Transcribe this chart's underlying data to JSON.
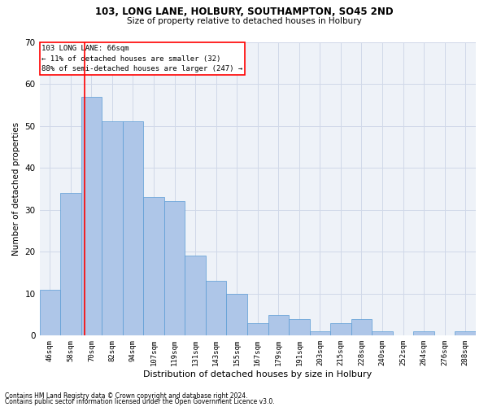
{
  "title1": "103, LONG LANE, HOLBURY, SOUTHAMPTON, SO45 2ND",
  "title2": "Size of property relative to detached houses in Holbury",
  "xlabel": "Distribution of detached houses by size in Holbury",
  "ylabel": "Number of detached properties",
  "categories": [
    "46sqm",
    "58sqm",
    "70sqm",
    "82sqm",
    "94sqm",
    "107sqm",
    "119sqm",
    "131sqm",
    "143sqm",
    "155sqm",
    "167sqm",
    "179sqm",
    "191sqm",
    "203sqm",
    "215sqm",
    "228sqm",
    "240sqm",
    "252sqm",
    "264sqm",
    "276sqm",
    "288sqm"
  ],
  "values": [
    11,
    34,
    57,
    51,
    51,
    33,
    32,
    19,
    13,
    10,
    3,
    5,
    4,
    1,
    3,
    4,
    1,
    0,
    1,
    0,
    1
  ],
  "bar_color": "#aec6e8",
  "bar_edge_color": "#5a9bd5",
  "highlight_line_label": "103 LONG LANE: 66sqm",
  "annotation_line2": "← 11% of detached houses are smaller (32)",
  "annotation_line3": "88% of semi-detached houses are larger (247) →",
  "ylim": [
    0,
    70
  ],
  "yticks": [
    0,
    10,
    20,
    30,
    40,
    50,
    60,
    70
  ],
  "grid_color": "#d0d8e8",
  "bg_color": "#eef2f8",
  "footer1": "Contains HM Land Registry data © Crown copyright and database right 2024.",
  "footer2": "Contains public sector information licensed under the Open Government Licence v3.0."
}
